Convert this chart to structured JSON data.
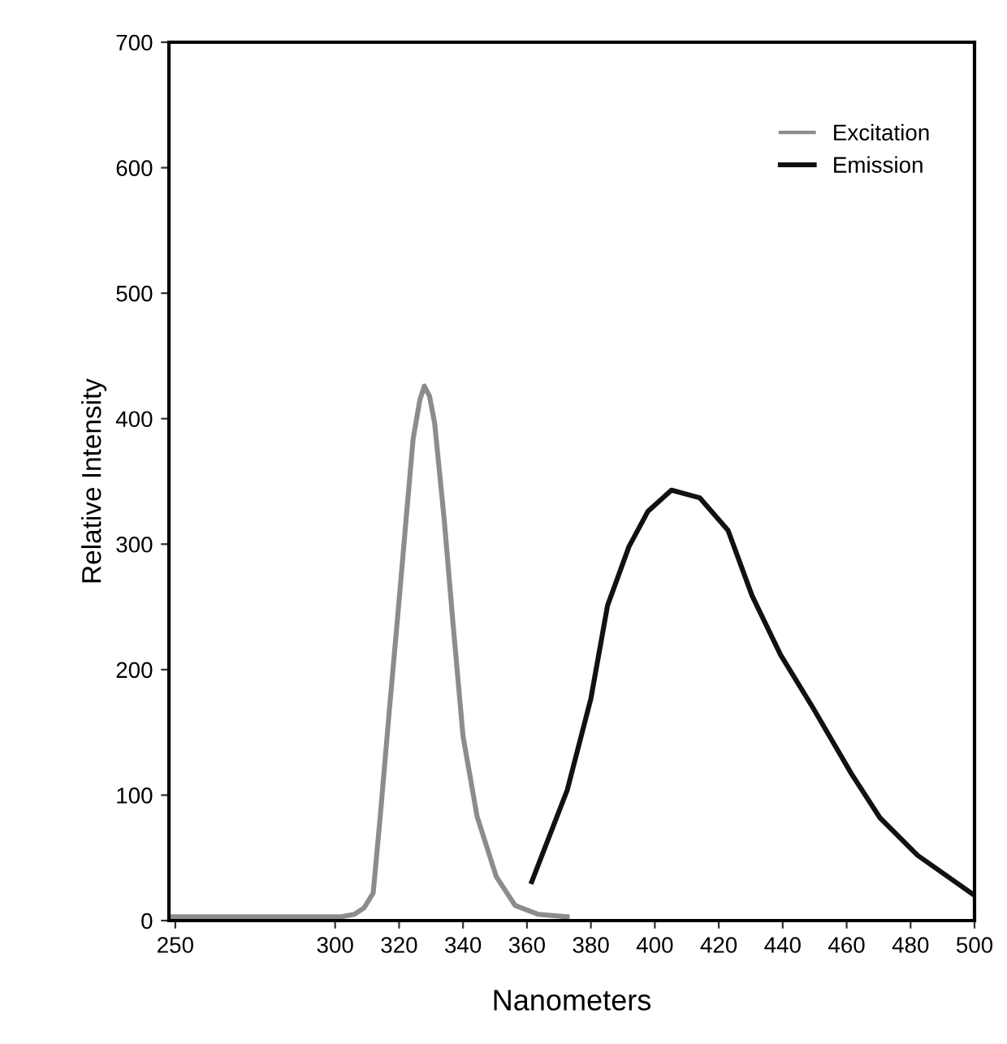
{
  "chart_data": {
    "type": "line",
    "xlabel": "Nanometers",
    "ylabel": "Relative Intensity",
    "xlim": [
      248,
      500
    ],
    "ylim": [
      0,
      700
    ],
    "xticks": [
      250,
      300,
      320,
      340,
      360,
      380,
      400,
      420,
      440,
      460,
      480,
      500
    ],
    "yticks": [
      0,
      100,
      200,
      300,
      400,
      500,
      600,
      700
    ],
    "grid": false,
    "legend": "top right",
    "marker": "none",
    "line_style": "solid",
    "series": [
      {
        "name": "Excitation",
        "color": "#8c8c8c",
        "x": [
          248,
          275,
          302,
          306,
          309,
          311.9,
          314.1,
          317,
          320,
          322.2,
          324.4,
          326.5,
          327.9,
          329.5,
          331.1,
          334.1,
          337,
          340,
          344.4,
          350.4,
          356.3,
          363.6,
          372.6
        ],
        "values": [
          3,
          3,
          3,
          5,
          10,
          22,
          83,
          169,
          255,
          320,
          384,
          415,
          426,
          418,
          397,
          320,
          233,
          147,
          83,
          35,
          12,
          5,
          3
        ]
      },
      {
        "name": "Emission",
        "color": "#111111",
        "x": [
          361.5,
          372.6,
          380,
          385.2,
          391.9,
          397.8,
          405.2,
          414,
          422.9,
          430.4,
          439.3,
          449.6,
          461.5,
          470.4,
          482.2,
          500
        ],
        "values": [
          31,
          104,
          177,
          251,
          298,
          326,
          343,
          337,
          311,
          259,
          212,
          169,
          117,
          82,
          52,
          20
        ]
      }
    ]
  }
}
